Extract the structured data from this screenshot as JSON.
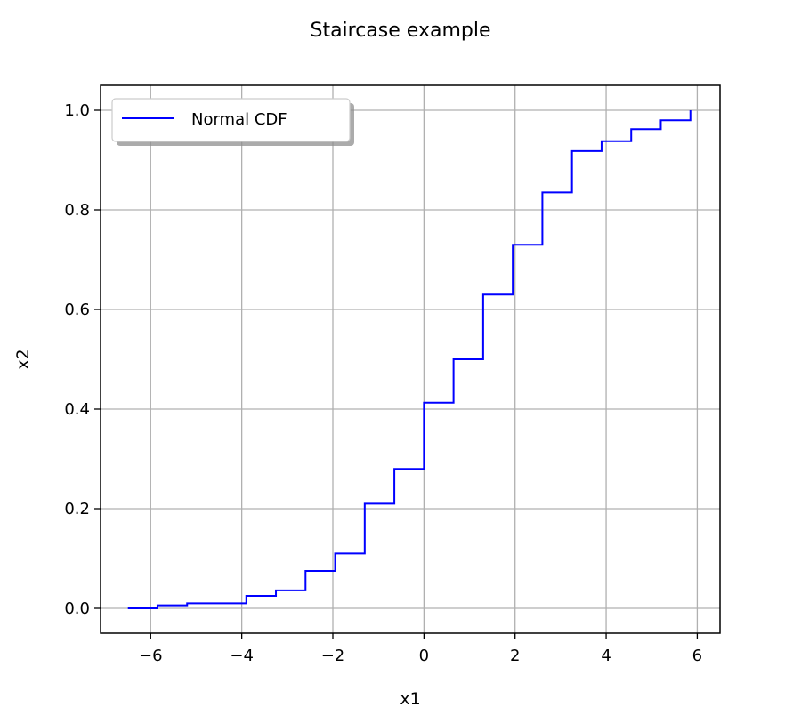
{
  "chart_data": {
    "type": "line",
    "drawstyle": "steps-post",
    "title": "Staircase example",
    "xlabel": "x1",
    "ylabel": "x2",
    "xlim": [
      -7.1,
      6.5
    ],
    "ylim": [
      -0.05,
      1.05
    ],
    "xticks": [
      -6,
      -4,
      -2,
      0,
      2,
      4,
      6
    ],
    "xtick_labels": [
      "−6",
      "−4",
      "−2",
      "0",
      "2",
      "4",
      "6"
    ],
    "yticks": [
      0.0,
      0.2,
      0.4,
      0.6,
      0.8,
      1.0
    ],
    "ytick_labels": [
      "0.0",
      "0.2",
      "0.4",
      "0.6",
      "0.8",
      "1.0"
    ],
    "grid": true,
    "legend": {
      "position": "top-left",
      "shadow": true
    },
    "series": [
      {
        "name": "Normal CDF",
        "color": "#0000ff",
        "x": [
          -6.5,
          -5.85,
          -5.2,
          -3.9,
          -3.25,
          -2.6,
          -1.95,
          -1.3,
          -0.65,
          0.0,
          0.65,
          1.3,
          1.95,
          2.6,
          3.25,
          3.9,
          4.55,
          5.2,
          5.85
        ],
        "y": [
          0.0,
          0.006,
          0.01,
          0.025,
          0.036,
          0.075,
          0.11,
          0.21,
          0.28,
          0.413,
          0.5,
          0.63,
          0.73,
          0.835,
          0.918,
          0.938,
          0.962,
          0.98,
          1.0
        ]
      }
    ]
  }
}
